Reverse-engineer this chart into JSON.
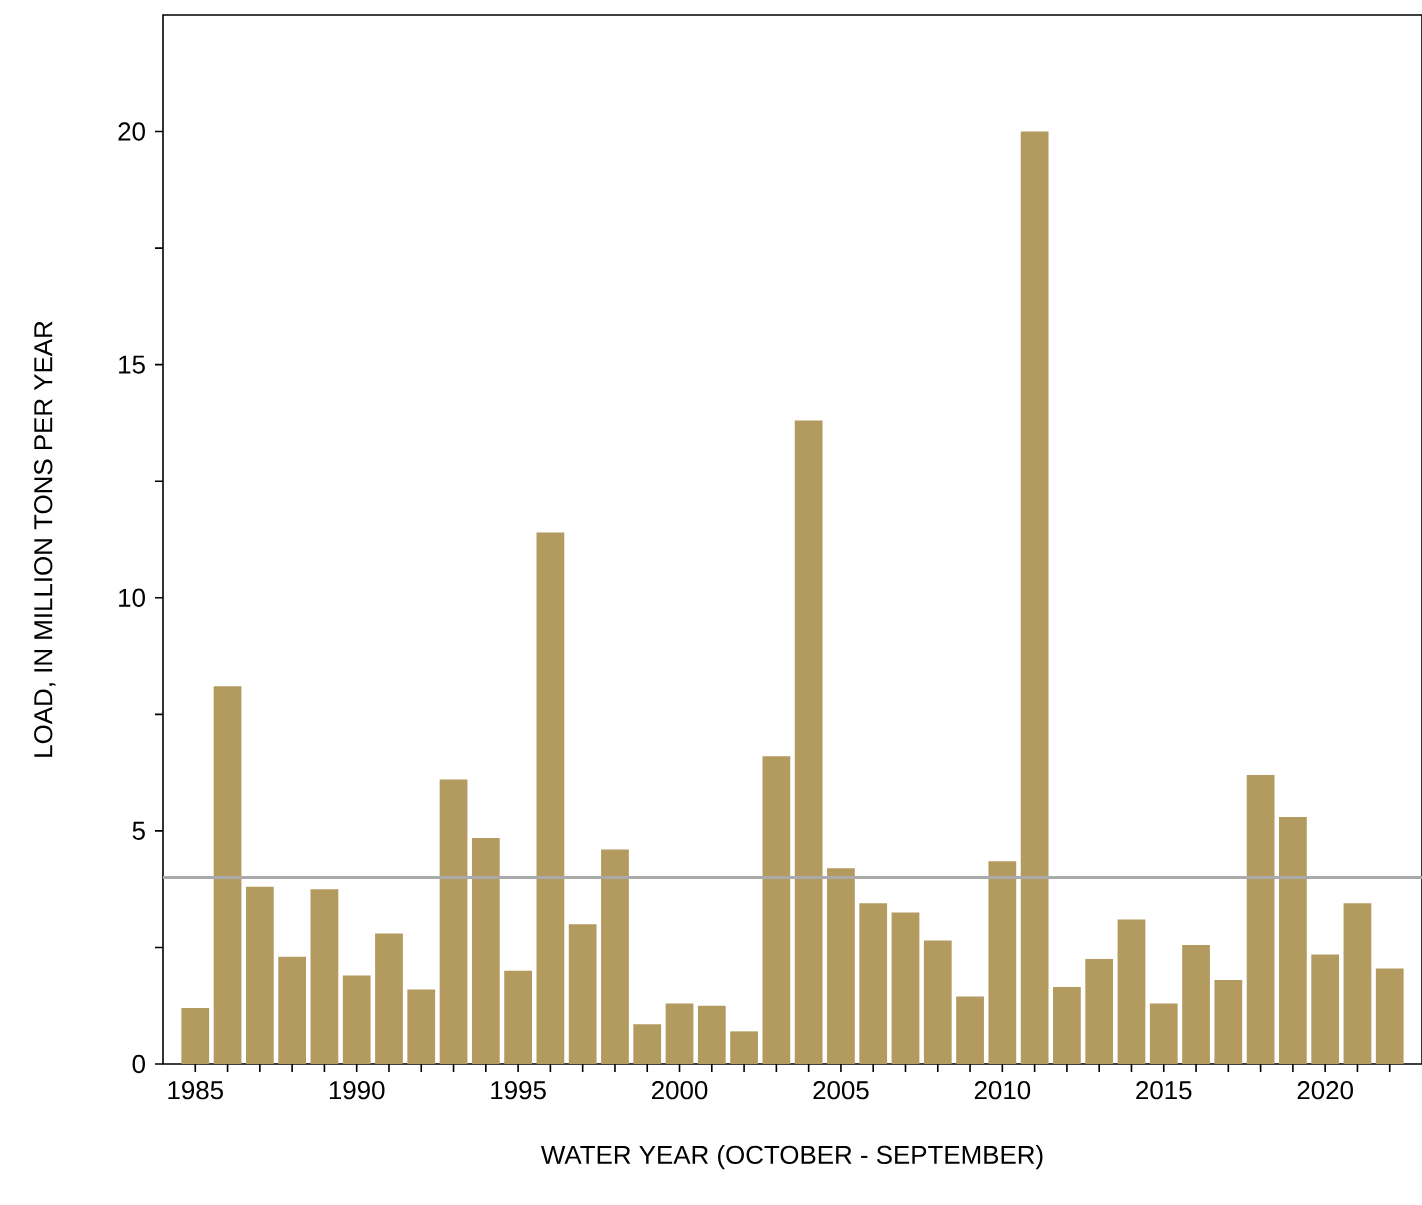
{
  "chart_data": {
    "type": "bar",
    "xlabel": "WATER YEAR (OCTOBER - SEPTEMBER)",
    "ylabel": "LOAD, IN MILLION TONS PER YEAR",
    "x": [
      1985,
      1986,
      1987,
      1988,
      1989,
      1990,
      1991,
      1992,
      1993,
      1994,
      1995,
      1996,
      1997,
      1998,
      1999,
      2000,
      2001,
      2002,
      2003,
      2004,
      2005,
      2006,
      2007,
      2008,
      2009,
      2010,
      2011,
      2012,
      2013,
      2014,
      2015,
      2016,
      2017,
      2018,
      2019,
      2020,
      2021,
      2022
    ],
    "values": [
      1.2,
      8.1,
      3.8,
      2.3,
      3.75,
      1.9,
      2.8,
      1.6,
      6.1,
      4.85,
      2.0,
      11.4,
      3.0,
      4.6,
      0.85,
      1.3,
      1.25,
      0.7,
      6.6,
      13.8,
      4.2,
      3.45,
      3.25,
      2.65,
      1.45,
      4.35,
      20.0,
      1.65,
      2.25,
      3.1,
      1.3,
      2.55,
      1.8,
      6.2,
      5.3,
      2.35,
      3.45,
      2.05
    ],
    "color": "#b39a5f",
    "xlim": [
      1984,
      2023
    ],
    "ylim": [
      0,
      22.5
    ],
    "xticks": [
      1985,
      {
        "value": 1986,
        "label": null
      },
      {
        "value": 1987,
        "label": null
      },
      {
        "value": 1988,
        "label": null
      },
      {
        "value": 1989,
        "label": null
      },
      1990,
      {
        "value": 1991,
        "label": null
      },
      {
        "value": 1992,
        "label": null
      },
      {
        "value": 1993,
        "label": null
      },
      {
        "value": 1994,
        "label": null
      },
      1995,
      {
        "value": 1996,
        "label": null
      },
      {
        "value": 1997,
        "label": null
      },
      {
        "value": 1998,
        "label": null
      },
      {
        "value": 1999,
        "label": null
      },
      2000,
      {
        "value": 2001,
        "label": null
      },
      {
        "value": 2002,
        "label": null
      },
      {
        "value": 2003,
        "label": null
      },
      {
        "value": 2004,
        "label": null
      },
      2005,
      {
        "value": 2006,
        "label": null
      },
      {
        "value": 2007,
        "label": null
      },
      {
        "value": 2008,
        "label": null
      },
      {
        "value": 2009,
        "label": null
      },
      2010,
      {
        "value": 2011,
        "label": null
      },
      {
        "value": 2012,
        "label": null
      },
      {
        "value": 2013,
        "label": null
      },
      {
        "value": 2014,
        "label": null
      },
      2015,
      {
        "value": 2016,
        "label": null
      },
      {
        "value": 2017,
        "label": null
      },
      {
        "value": 2018,
        "label": null
      },
      {
        "value": 2019,
        "label": null
      },
      2020,
      {
        "value": 2021,
        "label": null
      },
      {
        "value": 2022,
        "label": null
      }
    ],
    "yticks": [
      0,
      {
        "value": 2.5,
        "label": null
      },
      5,
      {
        "value": 7.5,
        "label": null
      },
      10,
      {
        "value": 12.5,
        "label": null
      },
      15,
      {
        "value": 17.5,
        "label": null
      },
      20
    ],
    "ref_lines": [
      {
        "axis": "y",
        "value": 4,
        "color": "#aaaaaa"
      }
    ]
  }
}
